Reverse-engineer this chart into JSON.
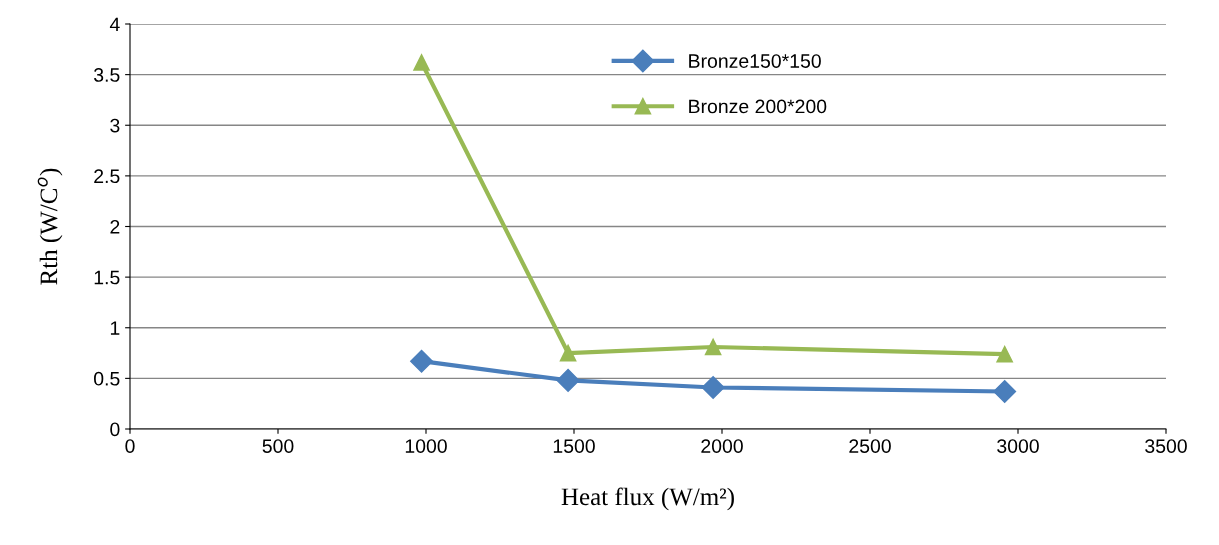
{
  "chart_data": {
    "type": "line",
    "xlabel": "Heat flux (W/m²)",
    "ylabel": "Rth (W/C$^{o}$)",
    "xlim": [
      0,
      3500
    ],
    "xticks": [
      0,
      500,
      1000,
      1500,
      2000,
      2500,
      3000,
      3500
    ],
    "ylim": [
      0,
      4
    ],
    "yticks": [
      0,
      0.5,
      1,
      1.5,
      2,
      2.5,
      3,
      3.5,
      4
    ],
    "grid": "y",
    "legend": "top",
    "series": [
      {
        "name": "Bronze150*150",
        "color": "#4a7ebb",
        "marker": "diamond",
        "x": [
          985,
          1480,
          1970,
          2955
        ],
        "values": [
          0.67,
          0.48,
          0.41,
          0.37
        ]
      },
      {
        "name": "Bronze 200*200",
        "color": "#98b954",
        "marker": "triangle",
        "x": [
          985,
          1480,
          1970,
          2955
        ],
        "values": [
          3.62,
          0.75,
          0.81,
          0.74
        ]
      }
    ]
  }
}
